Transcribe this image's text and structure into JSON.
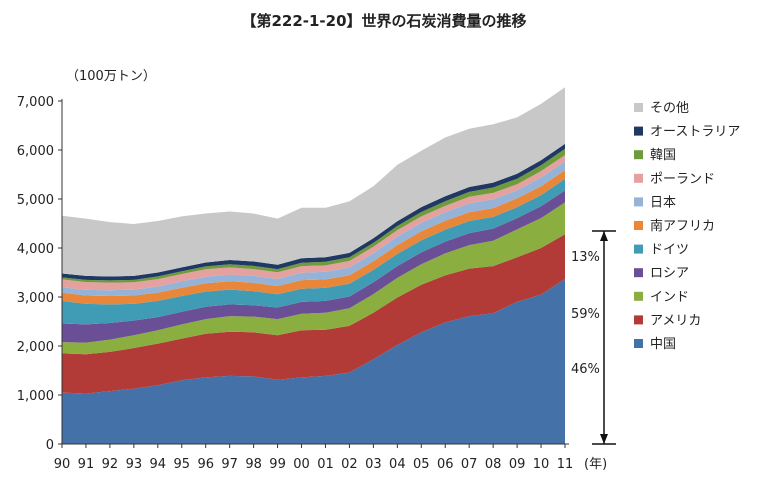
{
  "chart_data": {
    "type": "area",
    "stacked": true,
    "title": "【第222-1-20】世界の石炭消費量の推移",
    "ylabel": "（100万トン）",
    "xlabel_unit": "(年)",
    "x": [
      "90",
      "91",
      "92",
      "93",
      "94",
      "95",
      "96",
      "97",
      "98",
      "99",
      "00",
      "01",
      "02",
      "03",
      "04",
      "05",
      "06",
      "07",
      "08",
      "09",
      "10",
      "11"
    ],
    "ylim": [
      0,
      7000
    ],
    "yticks": [
      "0",
      "1,000",
      "2,000",
      "3,000",
      "4,000",
      "5,000",
      "6,000",
      "7,000"
    ],
    "grid": false,
    "legend_position": "right",
    "series": [
      {
        "name": "中国",
        "color": "#4472a8",
        "values": [
          1050,
          1030,
          1080,
          1130,
          1200,
          1300,
          1360,
          1390,
          1380,
          1310,
          1360,
          1390,
          1460,
          1730,
          2020,
          2280,
          2480,
          2610,
          2670,
          2900,
          3050,
          3370
        ]
      },
      {
        "name": "アメリカ",
        "color": "#b23b37",
        "values": [
          800,
          800,
          800,
          830,
          850,
          850,
          890,
          900,
          900,
          910,
          960,
          940,
          950,
          950,
          970,
          970,
          960,
          970,
          960,
          910,
          950,
          910
        ]
      },
      {
        "name": "インド",
        "color": "#8aae3f",
        "values": [
          230,
          240,
          250,
          260,
          270,
          290,
          300,
          320,
          320,
          330,
          340,
          350,
          360,
          380,
          400,
          420,
          450,
          480,
          520,
          570,
          610,
          650
        ]
      },
      {
        "name": "ロシア",
        "color": "#6b4f96",
        "values": [
          380,
          370,
          340,
          300,
          270,
          260,
          250,
          240,
          230,
          235,
          240,
          240,
          240,
          240,
          240,
          240,
          240,
          245,
          245,
          230,
          240,
          245
        ]
      },
      {
        "name": "ドイツ",
        "color": "#3f9cb4",
        "values": [
          460,
          420,
          380,
          340,
          330,
          320,
          310,
          300,
          290,
          270,
          270,
          265,
          260,
          255,
          250,
          250,
          245,
          245,
          240,
          225,
          230,
          235
        ]
      },
      {
        "name": "南アフリカ",
        "color": "#e8873a",
        "values": [
          170,
          170,
          170,
          170,
          170,
          170,
          170,
          170,
          170,
          170,
          175,
          175,
          175,
          175,
          180,
          180,
          180,
          180,
          180,
          180,
          180,
          180
        ]
      },
      {
        "name": "日本",
        "color": "#95b3d7",
        "values": [
          110,
          115,
          118,
          120,
          125,
          130,
          135,
          140,
          140,
          145,
          150,
          155,
          160,
          165,
          175,
          175,
          175,
          185,
          180,
          160,
          180,
          175
        ]
      },
      {
        "name": "ポーランド",
        "color": "#e5a0a0",
        "values": [
          160,
          160,
          155,
          150,
          150,
          150,
          150,
          145,
          140,
          135,
          135,
          130,
          130,
          130,
          130,
          130,
          130,
          130,
          130,
          125,
          130,
          130
        ]
      },
      {
        "name": "韓国",
        "color": "#6f9b3c",
        "values": [
          40,
          45,
          45,
          50,
          55,
          55,
          60,
          65,
          65,
          65,
          70,
          75,
          75,
          80,
          85,
          90,
          95,
          100,
          110,
          115,
          120,
          130
        ]
      },
      {
        "name": "オーストラリア",
        "color": "#1f3864",
        "values": [
          80,
          80,
          80,
          80,
          80,
          80,
          80,
          85,
          90,
          90,
          90,
          90,
          90,
          95,
          95,
          100,
          100,
          100,
          100,
          100,
          100,
          100
        ]
      },
      {
        "name": "その他",
        "color": "#c8c8c8",
        "values": [
          1180,
          1170,
          1110,
          1060,
          1050,
          1040,
          1000,
          990,
          980,
          940,
          1030,
          1010,
          1050,
          1060,
          1150,
          1150,
          1200,
          1190,
          1190,
          1150,
          1150,
          1155
        ]
      }
    ],
    "annotations": [
      {
        "text": "13%"
      },
      {
        "text": "59%"
      },
      {
        "text": "46%"
      }
    ]
  }
}
